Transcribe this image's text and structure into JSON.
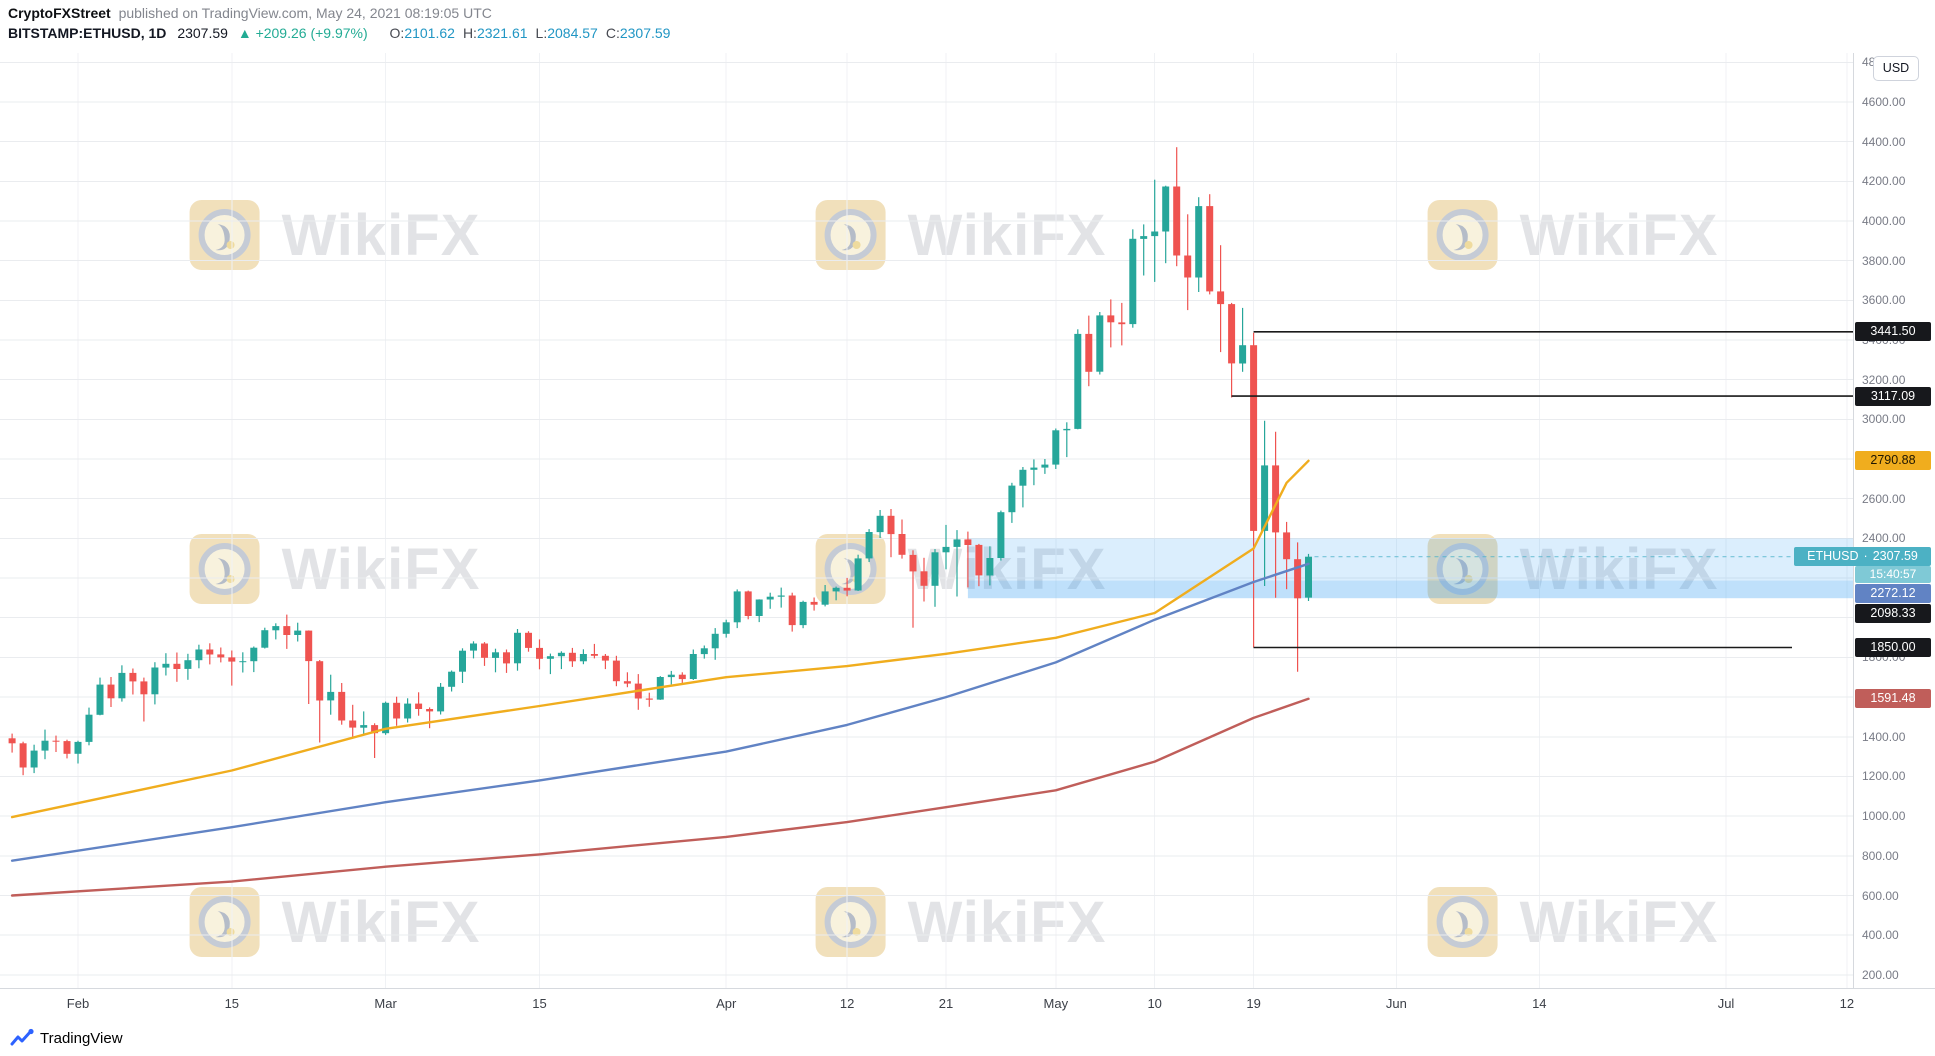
{
  "header": {
    "author": "CryptoFXStreet",
    "publish_info": "published on TradingView.com, May 24, 2021 08:19:05 UTC",
    "symbol_line": {
      "symbol": "BITSTAMP:ETHUSD, 1D",
      "last_price": "2307.59",
      "direction_arrow": "▲",
      "change": "+209.26 (+9.97%)",
      "change_color": "#22ab94",
      "value_color": "#2196c4",
      "ohlc": [
        {
          "label": "O:",
          "value": "2101.62"
        },
        {
          "label": "H:",
          "value": "2321.61"
        },
        {
          "label": "L:",
          "value": "2084.57"
        },
        {
          "label": "C:",
          "value": "2307.59"
        }
      ]
    }
  },
  "watermark": {
    "text": "WikiFX"
  },
  "footer": {
    "brand": "TradingView"
  },
  "price_axis": {
    "currency_button": "USD",
    "tick_min": 200,
    "tick_max": 4800,
    "tick_step": 200,
    "tags": [
      {
        "id": "level-3441",
        "text": "3441.50",
        "value": 3441.5,
        "bg": "#17181c",
        "fg": "#ffffff"
      },
      {
        "id": "level-3117",
        "text": "3117.09",
        "value": 3117.09,
        "bg": "#17181c",
        "fg": "#ffffff"
      },
      {
        "id": "ma-fast-tag",
        "text": "2790.88",
        "value": 2790.88,
        "bg": "#f0ad1e",
        "fg": "#1f1702"
      },
      {
        "id": "current-price",
        "symbol": "ETHUSD",
        "sep": "·",
        "text": "2307.59",
        "value": 2307.59,
        "bg": "#4cb1c4",
        "fg": "#ffffff",
        "countdown": "15:40:57",
        "countdown_bg": "#7fc9d6"
      },
      {
        "id": "ma-mid-tag",
        "text": "2272.12",
        "value": 2272.12,
        "bg": "#6183c4",
        "fg": "#ffffff"
      },
      {
        "id": "zone-bottom-tag",
        "text": "2098.33",
        "value": 2098.33,
        "bg": "#17181c",
        "fg": "#ffffff"
      },
      {
        "id": "level-1850",
        "text": "1850.00",
        "value": 1850.0,
        "bg": "#17181c",
        "fg": "#ffffff"
      },
      {
        "id": "ma-slow-tag",
        "text": "1591.48",
        "value": 1591.48,
        "bg": "#c05e5a",
        "fg": "#ffffff"
      }
    ]
  },
  "time_axis": {
    "ticks": [
      {
        "label": "Feb",
        "i": 6
      },
      {
        "label": "15",
        "i": 20
      },
      {
        "label": "Mar",
        "i": 34
      },
      {
        "label": "15",
        "i": 48
      },
      {
        "label": "Apr",
        "i": 65
      },
      {
        "label": "12",
        "i": 76
      },
      {
        "label": "21",
        "i": 85
      },
      {
        "label": "May",
        "i": 95
      },
      {
        "label": "10",
        "i": 104
      },
      {
        "label": "19",
        "i": 113
      },
      {
        "label": "Jun",
        "i": 126
      },
      {
        "label": "14",
        "i": 139
      },
      {
        "label": "Jul",
        "i": 156
      },
      {
        "label": "12",
        "i": 167
      }
    ]
  },
  "chart_data": {
    "type": "candlestick",
    "title": "BITSTAMP:ETHUSD 1D",
    "start_date": "2021-01-26",
    "y_range": [
      200,
      4800
    ],
    "up_color": "#26a69a",
    "down_color": "#ef5350",
    "grid": true,
    "candles": [
      [
        "01-26",
        1392,
        1416,
        1320,
        1367
      ],
      [
        "01-27",
        1367,
        1375,
        1206,
        1245
      ],
      [
        "01-28",
        1245,
        1360,
        1217,
        1330
      ],
      [
        "01-29",
        1330,
        1436,
        1287,
        1380
      ],
      [
        "01-30",
        1380,
        1406,
        1323,
        1378
      ],
      [
        "01-31",
        1378,
        1385,
        1291,
        1314
      ],
      [
        "02-01",
        1314,
        1380,
        1265,
        1374
      ],
      [
        "02-02",
        1374,
        1547,
        1357,
        1511
      ],
      [
        "02-03",
        1511,
        1698,
        1508,
        1663
      ],
      [
        "02-04",
        1663,
        1701,
        1550,
        1594
      ],
      [
        "02-05",
        1594,
        1760,
        1577,
        1722
      ],
      [
        "02-06",
        1722,
        1744,
        1613,
        1679
      ],
      [
        "02-07",
        1679,
        1698,
        1477,
        1614
      ],
      [
        "02-08",
        1614,
        1776,
        1563,
        1749
      ],
      [
        "02-09",
        1749,
        1821,
        1709,
        1768
      ],
      [
        "02-10",
        1768,
        1825,
        1677,
        1742
      ],
      [
        "02-11",
        1742,
        1818,
        1687,
        1786
      ],
      [
        "02-12",
        1786,
        1864,
        1745,
        1840
      ],
      [
        "02-13",
        1840,
        1871,
        1765,
        1815
      ],
      [
        "02-14",
        1815,
        1850,
        1775,
        1800
      ],
      [
        "02-15",
        1800,
        1835,
        1658,
        1779
      ],
      [
        "02-16",
        1779,
        1826,
        1724,
        1781
      ],
      [
        "02-17",
        1781,
        1855,
        1726,
        1849
      ],
      [
        "02-18",
        1849,
        1950,
        1845,
        1937
      ],
      [
        "02-19",
        1937,
        1972,
        1891,
        1958
      ],
      [
        "02-20",
        1958,
        2016,
        1843,
        1913
      ],
      [
        "02-21",
        1913,
        1975,
        1880,
        1935
      ],
      [
        "02-22",
        1935,
        1936,
        1565,
        1781
      ],
      [
        "02-23",
        1781,
        1787,
        1371,
        1583
      ],
      [
        "02-24",
        1583,
        1713,
        1511,
        1626
      ],
      [
        "02-25",
        1626,
        1671,
        1461,
        1482
      ],
      [
        "02-26",
        1482,
        1561,
        1400,
        1446
      ],
      [
        "02-27",
        1446,
        1528,
        1410,
        1459
      ],
      [
        "02-28",
        1459,
        1468,
        1293,
        1418
      ],
      [
        "03-01",
        1418,
        1577,
        1410,
        1571
      ],
      [
        "03-02",
        1571,
        1602,
        1455,
        1492
      ],
      [
        "03-03",
        1492,
        1594,
        1472,
        1567
      ],
      [
        "03-04",
        1567,
        1624,
        1506,
        1540
      ],
      [
        "03-05",
        1540,
        1548,
        1443,
        1528
      ],
      [
        "03-06",
        1528,
        1671,
        1512,
        1652
      ],
      [
        "03-07",
        1652,
        1734,
        1628,
        1728
      ],
      [
        "03-08",
        1728,
        1846,
        1671,
        1834
      ],
      [
        "03-09",
        1834,
        1881,
        1795,
        1870
      ],
      [
        "03-10",
        1870,
        1877,
        1757,
        1798
      ],
      [
        "03-11",
        1798,
        1844,
        1725,
        1826
      ],
      [
        "03-12",
        1826,
        1840,
        1722,
        1770
      ],
      [
        "03-13",
        1770,
        1943,
        1733,
        1924
      ],
      [
        "03-14",
        1924,
        1932,
        1829,
        1848
      ],
      [
        "03-15",
        1848,
        1891,
        1740,
        1793
      ],
      [
        "03-16",
        1793,
        1819,
        1716,
        1806
      ],
      [
        "03-17",
        1806,
        1831,
        1741,
        1823
      ],
      [
        "03-18",
        1823,
        1848,
        1752,
        1780
      ],
      [
        "03-19",
        1780,
        1841,
        1766,
        1817
      ],
      [
        "03-20",
        1817,
        1868,
        1795,
        1808
      ],
      [
        "03-21",
        1808,
        1817,
        1741,
        1784
      ],
      [
        "03-22",
        1784,
        1808,
        1655,
        1680
      ],
      [
        "03-23",
        1680,
        1725,
        1650,
        1668
      ],
      [
        "03-24",
        1668,
        1716,
        1536,
        1593
      ],
      [
        "03-25",
        1593,
        1622,
        1551,
        1587
      ],
      [
        "03-26",
        1587,
        1706,
        1586,
        1701
      ],
      [
        "03-27",
        1701,
        1732,
        1664,
        1713
      ],
      [
        "03-28",
        1713,
        1725,
        1661,
        1691
      ],
      [
        "03-29",
        1691,
        1840,
        1686,
        1817
      ],
      [
        "03-30",
        1817,
        1860,
        1794,
        1846
      ],
      [
        "03-31",
        1846,
        1948,
        1788,
        1919
      ],
      [
        "04-01",
        1919,
        1990,
        1900,
        1977
      ],
      [
        "04-02",
        1977,
        2143,
        1948,
        2133
      ],
      [
        "04-03",
        2133,
        2137,
        1992,
        2009
      ],
      [
        "04-04",
        2009,
        2093,
        1978,
        2092
      ],
      [
        "04-05",
        2092,
        2126,
        2045,
        2106
      ],
      [
        "04-06",
        2106,
        2152,
        2051,
        2112
      ],
      [
        "04-07",
        2112,
        2126,
        1930,
        1963
      ],
      [
        "04-08",
        1963,
        2086,
        1947,
        2080
      ],
      [
        "04-09",
        2080,
        2102,
        2036,
        2066
      ],
      [
        "04-10",
        2066,
        2165,
        2057,
        2133
      ],
      [
        "04-11",
        2133,
        2157,
        2088,
        2151
      ],
      [
        "04-12",
        2151,
        2201,
        2108,
        2137
      ],
      [
        "04-13",
        2137,
        2318,
        2135,
        2299
      ],
      [
        "04-14",
        2299,
        2447,
        2281,
        2432
      ],
      [
        "04-15",
        2432,
        2543,
        2402,
        2514
      ],
      [
        "04-16",
        2514,
        2548,
        2305,
        2422
      ],
      [
        "04-17",
        2422,
        2495,
        2298,
        2317
      ],
      [
        "04-18",
        2317,
        2340,
        1950,
        2234
      ],
      [
        "04-19",
        2234,
        2302,
        2082,
        2161
      ],
      [
        "04-20",
        2161,
        2346,
        2055,
        2330
      ],
      [
        "04-21",
        2330,
        2468,
        2244,
        2357
      ],
      [
        "04-22",
        2357,
        2442,
        2107,
        2395
      ],
      [
        "04-23",
        2395,
        2434,
        2153,
        2367
      ],
      [
        "04-24",
        2367,
        2372,
        2159,
        2213
      ],
      [
        "04-25",
        2213,
        2360,
        2163,
        2301
      ],
      [
        "04-26",
        2301,
        2540,
        2288,
        2532
      ],
      [
        "04-27",
        2532,
        2680,
        2478,
        2666
      ],
      [
        "04-28",
        2666,
        2760,
        2556,
        2746
      ],
      [
        "04-29",
        2746,
        2798,
        2668,
        2757
      ],
      [
        "04-30",
        2757,
        2800,
        2725,
        2772
      ],
      [
        "05-01",
        2772,
        2954,
        2750,
        2945
      ],
      [
        "05-02",
        2945,
        2985,
        2810,
        2952
      ],
      [
        "05-03",
        2952,
        3454,
        2950,
        3431
      ],
      [
        "05-04",
        3431,
        3523,
        3167,
        3240
      ],
      [
        "05-05",
        3240,
        3541,
        3226,
        3524
      ],
      [
        "05-06",
        3524,
        3605,
        3363,
        3489
      ],
      [
        "05-07",
        3489,
        3587,
        3373,
        3480
      ],
      [
        "05-08",
        3480,
        3958,
        3462,
        3910
      ],
      [
        "05-09",
        3910,
        3983,
        3725,
        3924
      ],
      [
        "05-10",
        3924,
        4208,
        3693,
        3947
      ],
      [
        "05-11",
        3947,
        4178,
        3787,
        4174
      ],
      [
        "05-12",
        4174,
        4372,
        3772,
        3826
      ],
      [
        "05-13",
        3826,
        4034,
        3551,
        3715
      ],
      [
        "05-14",
        3715,
        4120,
        3642,
        4075
      ],
      [
        "05-15",
        4075,
        4135,
        3630,
        3645
      ],
      [
        "05-16",
        3645,
        3878,
        3339,
        3581
      ],
      [
        "05-17",
        3581,
        3587,
        3110,
        3282
      ],
      [
        "05-18",
        3282,
        3562,
        3240,
        3374
      ],
      [
        "05-19",
        3374,
        3437,
        1850,
        2438
      ],
      [
        "05-20",
        2438,
        2993,
        2160,
        2768
      ],
      [
        "05-21",
        2768,
        2938,
        2101,
        2430
      ],
      [
        "05-22",
        2430,
        2483,
        2144,
        2295
      ],
      [
        "05-23",
        2295,
        2380,
        1728,
        2098
      ],
      [
        "05-24",
        2101.62,
        2321.61,
        2084.57,
        2307.59
      ]
    ],
    "moving_averages": [
      {
        "name": "sma-fast",
        "color": "#f0ad1e",
        "points": [
          [
            0,
            995
          ],
          [
            20,
            1230
          ],
          [
            34,
            1440
          ],
          [
            48,
            1555
          ],
          [
            65,
            1700
          ],
          [
            76,
            1756
          ],
          [
            85,
            1818
          ],
          [
            95,
            1899
          ],
          [
            104,
            2024
          ],
          [
            113,
            2349
          ],
          [
            116,
            2680
          ],
          [
            118,
            2790.88
          ]
        ]
      },
      {
        "name": "sma-mid",
        "color": "#6183c4",
        "points": [
          [
            0,
            775
          ],
          [
            20,
            944
          ],
          [
            34,
            1070
          ],
          [
            48,
            1180
          ],
          [
            65,
            1325
          ],
          [
            76,
            1460
          ],
          [
            85,
            1600
          ],
          [
            95,
            1775
          ],
          [
            104,
            1990
          ],
          [
            113,
            2180
          ],
          [
            118,
            2272.12
          ]
        ]
      },
      {
        "name": "sma-slow",
        "color": "#c05e5a",
        "points": [
          [
            0,
            600
          ],
          [
            20,
            670
          ],
          [
            34,
            745
          ],
          [
            48,
            807
          ],
          [
            65,
            895
          ],
          [
            76,
            970
          ],
          [
            85,
            1045
          ],
          [
            95,
            1130
          ],
          [
            104,
            1275
          ],
          [
            113,
            1495
          ],
          [
            118,
            1591.48
          ]
        ]
      }
    ],
    "levels": [
      {
        "value": 3441.5,
        "start_i": 113,
        "end_i": null,
        "color": "#1a1a1a"
      },
      {
        "value": 3117.09,
        "start_i": 111,
        "end_i": null,
        "color": "#1a1a1a"
      },
      {
        "value": 1850.0,
        "start_i": 113,
        "end_i": 162,
        "color": "#1a1a1a"
      }
    ],
    "zones": [
      {
        "top": 2400,
        "bottom": 2098.33,
        "start_i": 87,
        "end_i": null,
        "fill": "rgba(33,150,243,0.16)"
      },
      {
        "top": 2187,
        "bottom": 2098.33,
        "start_i": 87,
        "end_i": null,
        "fill": "rgba(33,150,243,0.15)"
      }
    ],
    "current_price_line": {
      "value": 2307.59,
      "color": "#49b1c7",
      "style": "dashed"
    }
  }
}
